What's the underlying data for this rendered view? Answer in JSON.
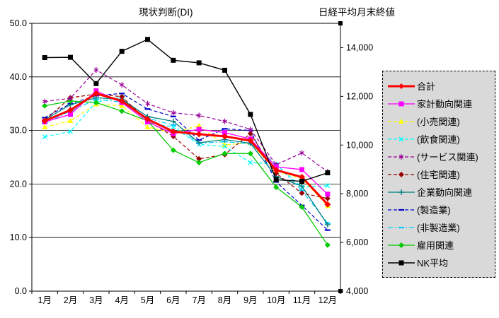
{
  "chart_data": {
    "type": "line",
    "title_left": "現状判断(DI)",
    "title_right": "日経平均月末終値",
    "categories": [
      "1月",
      "2月",
      "3月",
      "4月",
      "5月",
      "6月",
      "7月",
      "8月",
      "9月",
      "10月",
      "11月",
      "12月"
    ],
    "left_axis": {
      "label": "現状判断(DI)",
      "min": 0,
      "max": 50,
      "step": 10,
      "tick_labels": [
        "0.0",
        "10.0",
        "20.0",
        "30.0",
        "40.0",
        "50.0"
      ]
    },
    "right_axis": {
      "label": "日経平均月末終値",
      "min": 4000,
      "max": 15000,
      "tick_values": [
        4000,
        6000,
        8000,
        10000,
        12000,
        14000
      ],
      "tick_labels": [
        "4,000",
        "6,000",
        "8,000",
        "10,000",
        "12,000",
        "14,000"
      ]
    },
    "grid": "horizontal",
    "legend_position": "right",
    "legend_background": "#d9d9d9",
    "series": [
      {
        "name": "合計",
        "axis": "left",
        "color": "#ff0000",
        "dash": "solid",
        "width": 3,
        "marker": "diamond",
        "values": [
          31.8,
          33.8,
          36.9,
          35.5,
          32.1,
          29.8,
          29.3,
          28.9,
          28.1,
          22.6,
          21.3,
          16.2
        ]
      },
      {
        "name": "家計動向関連",
        "axis": "left",
        "color": "#ff00ff",
        "dash": "solid",
        "width": 1.3,
        "marker": "square",
        "values": [
          31.6,
          33.0,
          37.4,
          35.2,
          31.6,
          29.4,
          30.2,
          29.6,
          28.4,
          23.2,
          22.7,
          18.1
        ]
      },
      {
        "name": "(小売関連)",
        "axis": "left",
        "color": "#ffff00",
        "dash": "dashed",
        "width": 1.3,
        "marker": "triangle",
        "values": [
          30.6,
          31.8,
          34.9,
          34.6,
          30.6,
          29.6,
          30.9,
          27.3,
          27.7,
          22.4,
          21.0,
          15.9
        ]
      },
      {
        "name": "(飲食関連)",
        "axis": "left",
        "color": "#00ffff",
        "dash": "dashed",
        "width": 1.2,
        "marker": "x",
        "values": [
          28.8,
          29.8,
          35.3,
          36.2,
          31.5,
          30.6,
          27.4,
          27.0,
          24.0,
          23.7,
          19.4,
          19.7
        ]
      },
      {
        "name": "(サービス関連)",
        "axis": "left",
        "color": "#990099",
        "dash": "dashed",
        "width": 1.2,
        "marker": "star",
        "values": [
          35.4,
          36.0,
          41.3,
          38.5,
          35.0,
          33.3,
          32.8,
          31.7,
          30.2,
          23.6,
          25.8,
          22.3
        ]
      },
      {
        "name": "(住宅関連)",
        "axis": "left",
        "color": "#990000",
        "dash": "dashed",
        "width": 1.2,
        "marker": "diamond",
        "values": [
          31.9,
          36.1,
          36.8,
          36.3,
          31.8,
          28.9,
          24.7,
          25.5,
          29.4,
          22.0,
          18.3,
          17.3
        ]
      },
      {
        "name": "企業動向関連",
        "axis": "left",
        "color": "#008080",
        "dash": "solid",
        "width": 1.3,
        "marker": "plus",
        "values": [
          32.0,
          34.8,
          36.1,
          35.8,
          32.6,
          31.7,
          27.7,
          28.3,
          27.6,
          21.4,
          19.6,
          12.4
        ]
      },
      {
        "name": "(製造業)",
        "axis": "left",
        "color": "#0000cc",
        "dash": "dashed",
        "width": 1.2,
        "marker": "dash",
        "values": [
          32.4,
          35.0,
          36.5,
          36.9,
          34.0,
          32.6,
          28.2,
          30.3,
          30.0,
          20.4,
          16.0,
          11.4
        ]
      },
      {
        "name": "(非製造業)",
        "axis": "left",
        "color": "#00ccff",
        "dash": "dashdot",
        "width": 1.2,
        "marker": "dash",
        "values": [
          31.4,
          33.6,
          35.8,
          35.3,
          32.3,
          31.0,
          27.6,
          27.9,
          27.5,
          23.7,
          18.8,
          12.7
        ]
      },
      {
        "name": "雇用関連",
        "axis": "left",
        "color": "#00cc00",
        "dash": "solid",
        "width": 1.3,
        "marker": "diamond",
        "values": [
          34.6,
          35.5,
          35.2,
          33.6,
          31.8,
          26.3,
          24.0,
          25.7,
          25.7,
          19.4,
          15.7,
          8.6
        ]
      },
      {
        "name": "NK平均",
        "axis": "right",
        "color": "#000000",
        "dash": "solid",
        "width": 1.4,
        "marker": "square",
        "values": [
          13592,
          13603,
          12526,
          13850,
          14339,
          13481,
          13377,
          13073,
          11260,
          8577,
          8512,
          8860
        ]
      }
    ]
  }
}
